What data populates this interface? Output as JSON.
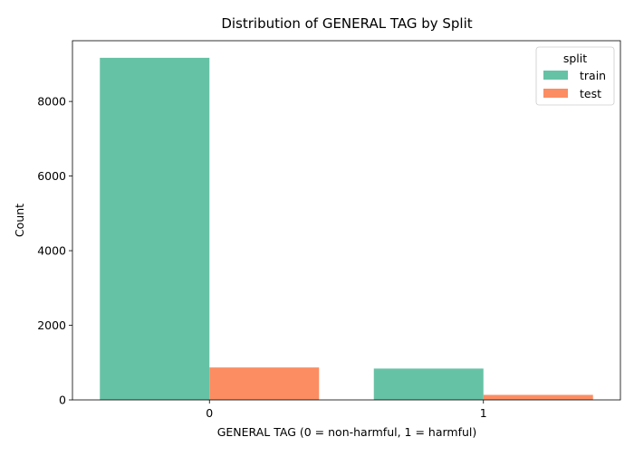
{
  "chart_data": {
    "type": "bar",
    "title": "Distribution of GENERAL TAG by Split",
    "xlabel": "GENERAL TAG (0 = non-harmful, 1 = harmful)",
    "ylabel": "Count",
    "categories": [
      "0",
      "1"
    ],
    "series": [
      {
        "name": "train",
        "values": [
          9170,
          840
        ],
        "color": "#66c2a5"
      },
      {
        "name": "test",
        "values": [
          870,
          135
        ],
        "color": "#fc8d62"
      }
    ],
    "ylim": [
      0,
      9628
    ],
    "yticks": [
      0,
      2000,
      4000,
      6000,
      8000
    ],
    "grid": false,
    "legend": {
      "title": "split",
      "position": "top-right"
    }
  }
}
